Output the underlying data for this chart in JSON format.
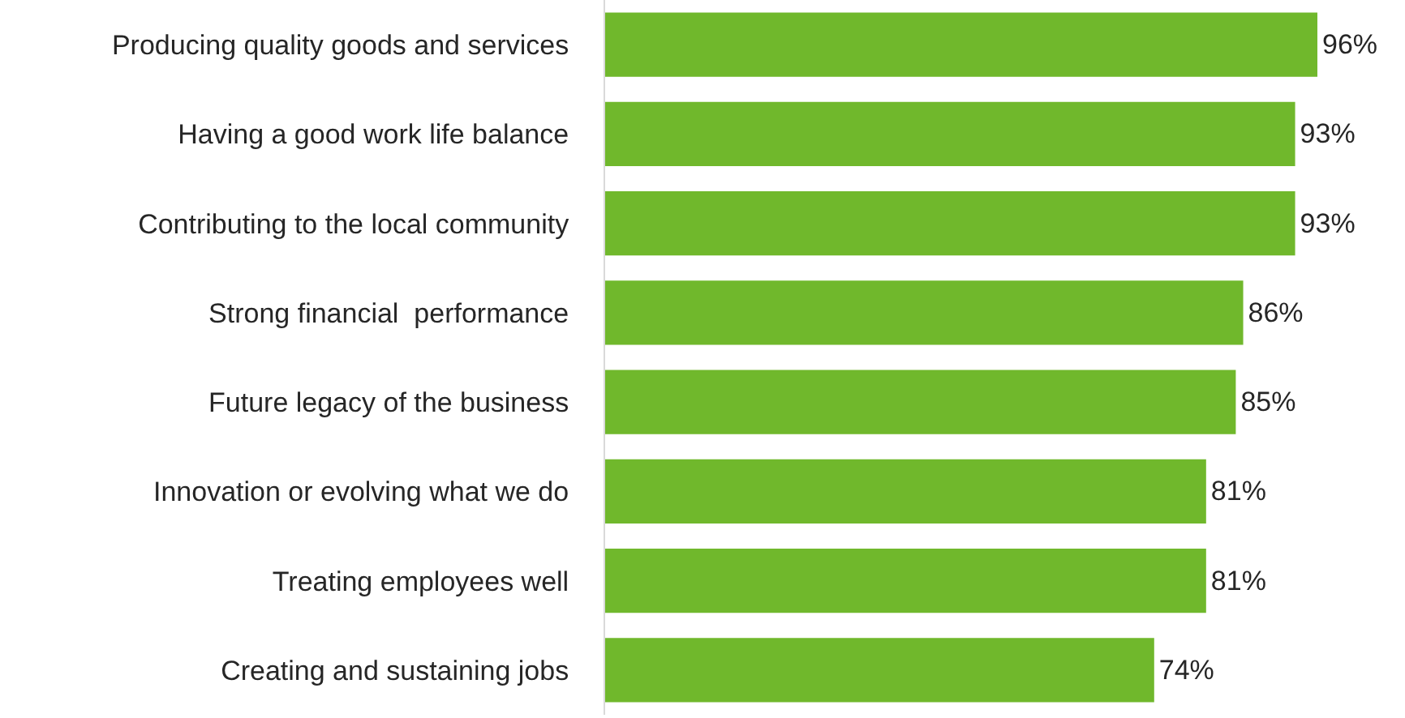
{
  "chart_data": {
    "type": "bar",
    "orientation": "horizontal",
    "categories": [
      "Producing quality goods and services",
      "Having a good work life balance",
      "Contributing to the local community",
      "Strong financial  performance",
      "Future legacy of the business",
      "Innovation or evolving what we do",
      "Treating employees well",
      "Creating and sustaining jobs"
    ],
    "values": [
      96,
      93,
      93,
      86,
      85,
      81,
      81,
      74
    ],
    "value_labels": [
      "96%",
      "93%",
      "93%",
      "86%",
      "85%",
      "81%",
      "81%",
      "74%"
    ],
    "color": "#70b82c"
  }
}
